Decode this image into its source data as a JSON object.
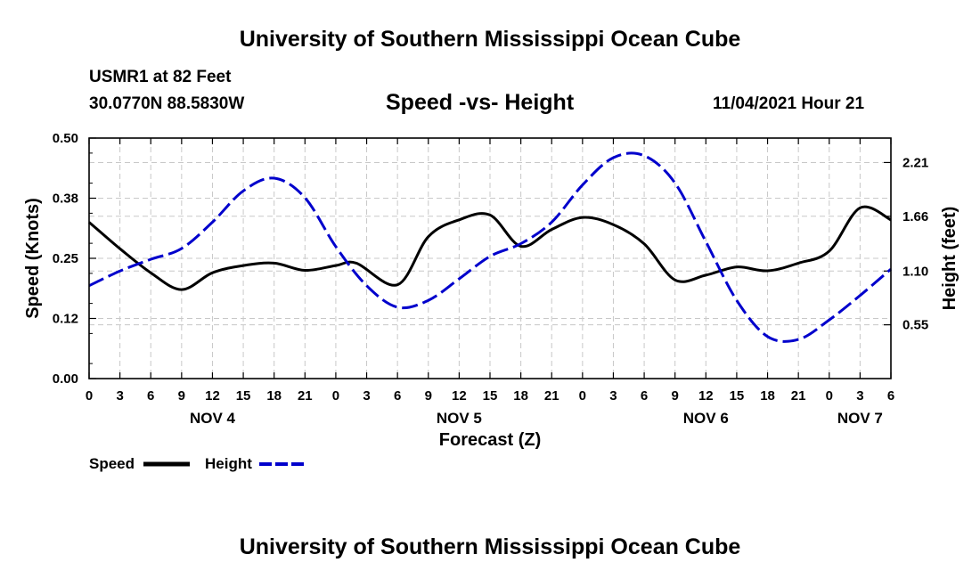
{
  "header": {
    "title": "University of Southern Mississippi Ocean Cube",
    "station": "USMR1 at 82 Feet",
    "coords": "30.0770N  88.5830W",
    "datetime": "11/04/2021 Hour 21"
  },
  "footer": {
    "title": "University of Southern Mississippi Ocean Cube"
  },
  "chart_data": {
    "type": "line",
    "title": "Speed -vs- Height",
    "xlabel": "Forecast (Z)",
    "ylabel_left": "Speed (Knots)",
    "ylabel_right": "Height (feet)",
    "x_unit": "forecast hours from Nov 4 00Z",
    "xlim": [
      0,
      78
    ],
    "ylim_left": [
      0,
      0.5
    ],
    "ylim_right": [
      0.0,
      2.46
    ],
    "yticks_left": [
      "0.00",
      "0.12",
      "0.25",
      "0.38",
      "0.50"
    ],
    "yticks_right": [
      "0.55",
      "1.10",
      "1.66",
      "2.21"
    ],
    "xtick_labels": [
      "0",
      "3",
      "6",
      "9",
      "12",
      "15",
      "18",
      "21",
      "0",
      "3",
      "6",
      "9",
      "12",
      "15",
      "18",
      "21",
      "0",
      "3",
      "6",
      "9",
      "12",
      "15",
      "18",
      "21",
      "0",
      "3",
      "6"
    ],
    "date_labels": [
      {
        "label": "NOV 4",
        "hour": 12
      },
      {
        "label": "NOV 5",
        "hour": 36
      },
      {
        "label": "NOV 6",
        "hour": 60
      },
      {
        "label": "NOV 7",
        "hour": 75
      }
    ],
    "grid": true,
    "legend": "bottom-left",
    "series": [
      {
        "name": "Speed",
        "axis": "left",
        "color": "#000000",
        "dash": "solid",
        "x": [
          0,
          3,
          6,
          9,
          12,
          15,
          18,
          21,
          24,
          26,
          30,
          33,
          36,
          39,
          42,
          45,
          48,
          51,
          54,
          57,
          60,
          63,
          66,
          69,
          72,
          75,
          78
        ],
        "values": [
          0.325,
          0.27,
          0.22,
          0.185,
          0.22,
          0.235,
          0.24,
          0.225,
          0.235,
          0.24,
          0.195,
          0.295,
          0.33,
          0.34,
          0.275,
          0.31,
          0.335,
          0.32,
          0.28,
          0.205,
          0.215,
          0.232,
          0.224,
          0.24,
          0.265,
          0.355,
          0.33
        ]
      },
      {
        "name": "Height",
        "axis": "right",
        "color": "#0000cc",
        "dash": "dashed",
        "x": [
          0,
          3,
          6,
          9,
          12,
          15,
          18,
          21,
          24,
          27,
          30,
          33,
          36,
          39,
          42,
          45,
          48,
          51,
          54,
          57,
          60,
          63,
          66,
          69,
          72,
          75,
          78
        ],
        "values": [
          0.95,
          1.1,
          1.22,
          1.33,
          1.6,
          1.92,
          2.05,
          1.85,
          1.35,
          0.95,
          0.73,
          0.8,
          1.02,
          1.25,
          1.38,
          1.6,
          1.98,
          2.26,
          2.28,
          2.0,
          1.4,
          0.8,
          0.43,
          0.4,
          0.6,
          0.85,
          1.12
        ]
      }
    ]
  }
}
